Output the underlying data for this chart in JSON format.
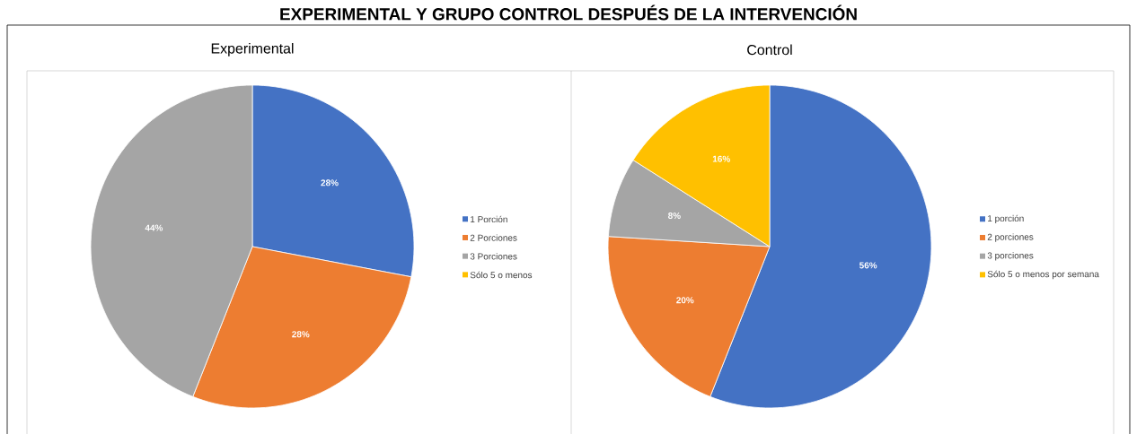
{
  "chart_data": [
    {
      "type": "pie",
      "title": "Experimental",
      "annotations": [
        "EXPERIMENTAL Y GRUPO CONTROL DESPUÉS DE LA INTERVENCIÓN"
      ],
      "categories": [
        "1 Porción",
        "2 Porciones",
        "3 Porciones",
        "Sólo 5 o menos"
      ],
      "values": [
        28,
        28,
        44,
        0
      ],
      "value_labels": [
        "28%",
        "28%",
        "44%",
        null
      ],
      "colors": [
        "#4472c4",
        "#ed7d31",
        "#a5a5a5",
        "#ffc000"
      ],
      "legend": "right"
    },
    {
      "type": "pie",
      "title": "Control",
      "categories": [
        "1 porción",
        "2 porciones",
        "3 porciones",
        "Sólo 5 o menos por semana"
      ],
      "values": [
        56,
        20,
        8,
        16
      ],
      "value_labels": [
        "56%",
        "20%",
        "8%",
        "16%"
      ],
      "colors": [
        "#4472c4",
        "#ed7d31",
        "#a5a5a5",
        "#ffc000"
      ],
      "legend": "right"
    }
  ]
}
